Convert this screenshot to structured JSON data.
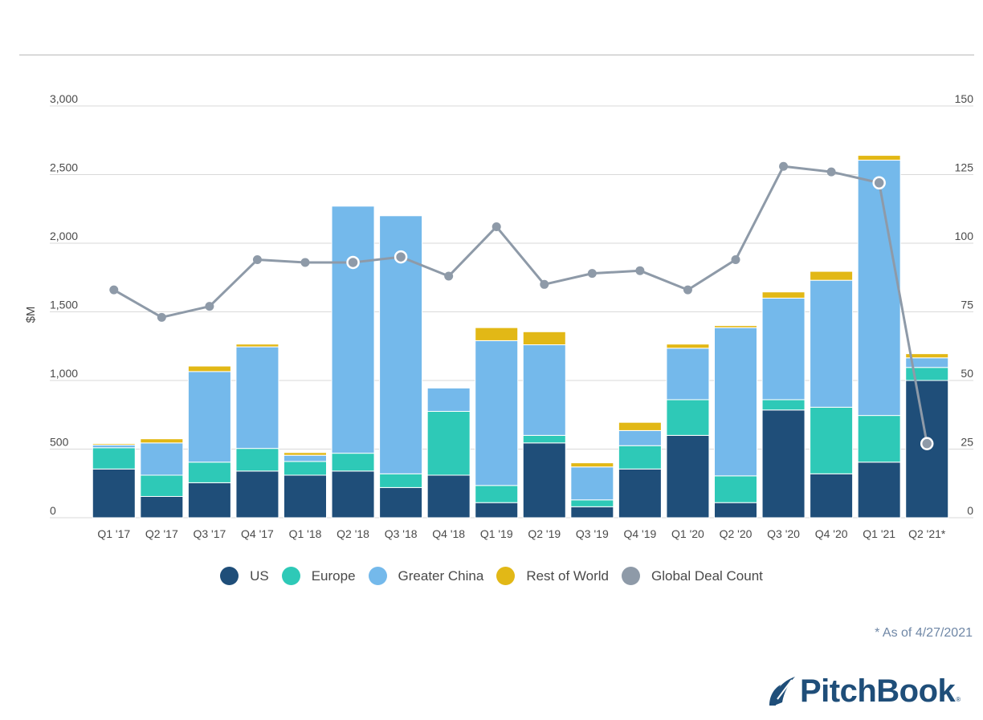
{
  "chart_data": {
    "type": "bar",
    "stacked": true,
    "categories": [
      "Q1 '17",
      "Q2 '17",
      "Q3 '17",
      "Q4 '17",
      "Q1 '18",
      "Q2 '18",
      "Q3 '18",
      "Q4 '18",
      "Q1 '19",
      "Q2 '19",
      "Q3 '19",
      "Q4 '19",
      "Q1 '20",
      "Q2 '20",
      "Q3 '20",
      "Q4 '20",
      "Q1 '21",
      "Q2 '21*"
    ],
    "ylabel": "$M",
    "ylim": [
      0,
      3000
    ],
    "yticks": [
      "0",
      "500",
      "1,000",
      "1,500",
      "2,000",
      "2,500",
      "3,000"
    ],
    "y2lim": [
      0,
      150
    ],
    "y2ticks": [
      "0",
      "25",
      "50",
      "75",
      "100",
      "125",
      "150"
    ],
    "grid": true,
    "legend_position": "bottom",
    "series": [
      {
        "name": "US",
        "color": "#1f4e79",
        "values": [
          355,
          155,
          255,
          340,
          310,
          340,
          220,
          310,
          110,
          545,
          80,
          355,
          600,
          110,
          785,
          320,
          405,
          1000
        ]
      },
      {
        "name": "Europe",
        "color": "#2ec9b7",
        "values": [
          155,
          155,
          150,
          165,
          100,
          130,
          100,
          465,
          125,
          55,
          50,
          170,
          260,
          195,
          75,
          485,
          340,
          95
        ]
      },
      {
        "name": "Greater China",
        "color": "#74b9eb",
        "values": [
          20,
          235,
          660,
          740,
          45,
          1800,
          1880,
          170,
          1055,
          660,
          240,
          110,
          375,
          1080,
          740,
          925,
          1860,
          70
        ]
      },
      {
        "name": "Rest of World",
        "color": "#e2b816",
        "values": [
          10,
          30,
          40,
          20,
          20,
          0,
          0,
          0,
          95,
          95,
          30,
          60,
          30,
          15,
          45,
          65,
          35,
          30
        ]
      }
    ],
    "line_series": {
      "name": "Global Deal Count",
      "color": "#8e9aa8",
      "axis": "right",
      "values": [
        83,
        73,
        77,
        94,
        93,
        93,
        95,
        88,
        106,
        85,
        89,
        90,
        83,
        94,
        128,
        126,
        122,
        27
      ],
      "highlighted": [
        5,
        6,
        16,
        17
      ]
    }
  },
  "footnote": "* As of 4/27/2021",
  "logo": {
    "text": "PitchBook",
    "reg": "®"
  }
}
